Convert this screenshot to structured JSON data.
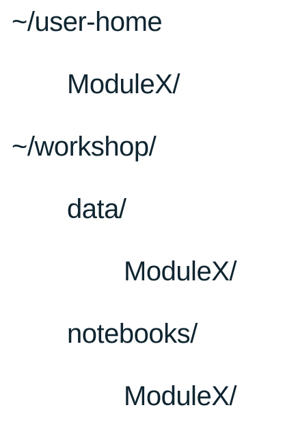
{
  "tree": {
    "root_home": "~/user-home",
    "home_module": "ModuleX/",
    "root_workshop": "~/workshop/",
    "data_folder": "data/",
    "data_module": "ModuleX/",
    "notebooks_folder": "notebooks/",
    "notebooks_module": "ModuleX/"
  }
}
